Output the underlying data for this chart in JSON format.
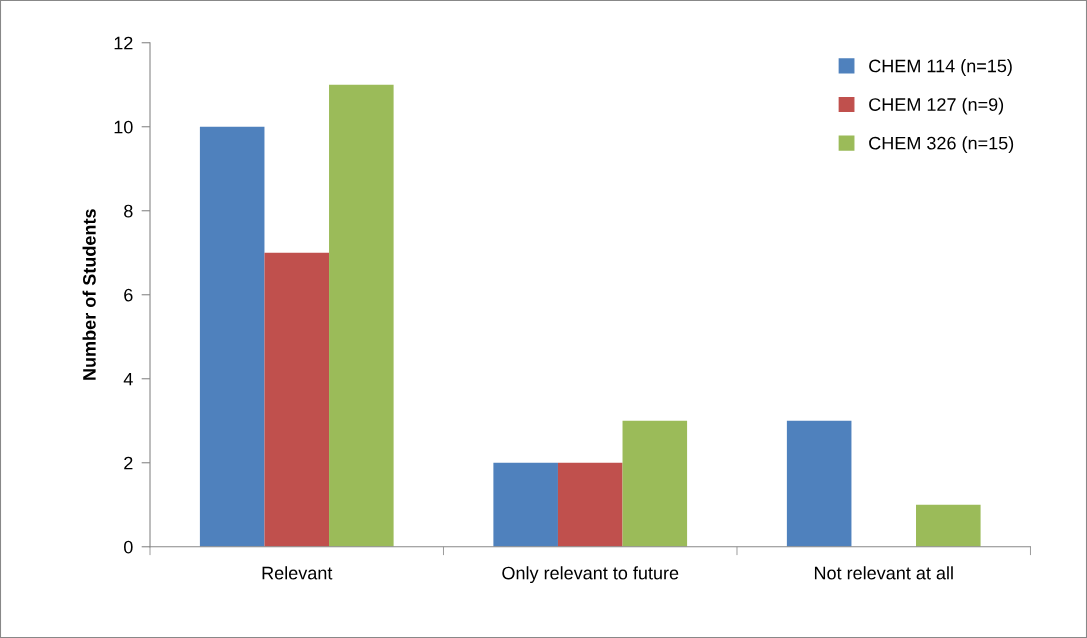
{
  "chart_data": {
    "type": "bar",
    "ylabel": "Number of Students",
    "categories": [
      "Relevant",
      "Only relevant to future",
      "Not relevant at all"
    ],
    "series": [
      {
        "name": "CHEM 114 (n=15)",
        "color": "#4f81bd",
        "values": [
          10,
          2,
          3
        ]
      },
      {
        "name": "CHEM 127 (n=9)",
        "color": "#c0504d",
        "values": [
          7,
          2,
          0
        ]
      },
      {
        "name": "CHEM 326 (n=15)",
        "color": "#9bbb59",
        "values": [
          11,
          3,
          1
        ]
      }
    ],
    "ylim": [
      0,
      12
    ],
    "yticks": [
      0,
      2,
      4,
      6,
      8,
      10,
      12
    ],
    "grid": false,
    "legend": "top right"
  }
}
